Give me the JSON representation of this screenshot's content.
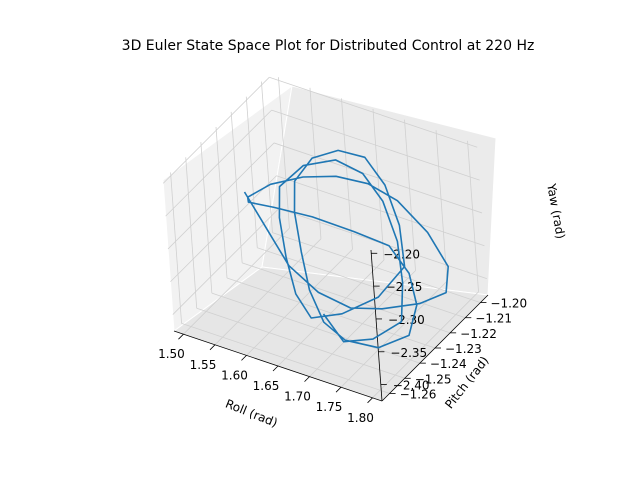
{
  "chart_data": {
    "type": "line3d",
    "title": "3D Euler State Space Plot for Distributed Control at 220 Hz",
    "xlabel": "Roll (rad)",
    "ylabel": "Pitch (rad)",
    "zlabel": "Yaw (rad)",
    "x_ticks": [
      "1.50",
      "1.55",
      "1.60",
      "1.65",
      "1.70",
      "1.75",
      "1.80"
    ],
    "y_ticks": [
      "−1.26",
      "−1.25",
      "−1.24",
      "−1.23",
      "−1.22",
      "−1.21",
      "−1.20"
    ],
    "z_ticks": [
      "−2.40",
      "−2.35",
      "−2.30",
      "−2.25",
      "−2.20"
    ],
    "xlim": [
      1.485,
      1.815
    ],
    "ylim": [
      -1.265,
      -1.195
    ],
    "zlim": [
      -2.425,
      -2.195
    ],
    "grid": true,
    "line_color": "#1f77b4",
    "series": [
      {
        "x": [
          1.55,
          1.6,
          1.64,
          1.69,
          1.73,
          1.76,
          1.79,
          1.8,
          1.78,
          1.74,
          1.7,
          1.67,
          1.64,
          1.61,
          1.58,
          1.56,
          1.55,
          1.57,
          1.61,
          1.66,
          1.71,
          1.75,
          1.78,
          1.79,
          1.76,
          1.72,
          1.69,
          1.66,
          1.63,
          1.6,
          1.58,
          1.59,
          1.62,
          1.66,
          1.7,
          1.74,
          1.77,
          1.75,
          1.71,
          1.67,
          1.64,
          1.61,
          1.58,
          1.56,
          1.58,
          1.62,
          1.66,
          1.7,
          1.74,
          1.77,
          1.79,
          1.76,
          1.72,
          1.68
        ],
        "y": [
          -1.24,
          -1.246,
          -1.25,
          -1.252,
          -1.248,
          -1.24,
          -1.228,
          -1.215,
          -1.205,
          -1.201,
          -1.203,
          -1.209,
          -1.217,
          -1.226,
          -1.235,
          -1.242,
          -1.238,
          -1.23,
          -1.222,
          -1.216,
          -1.214,
          -1.218,
          -1.226,
          -1.236,
          -1.244,
          -1.249,
          -1.25,
          -1.246,
          -1.238,
          -1.229,
          -1.22,
          -1.212,
          -1.207,
          -1.206,
          -1.21,
          -1.218,
          -1.228,
          -1.238,
          -1.246,
          -1.25,
          -1.247,
          -1.24,
          -1.231,
          -1.222,
          -1.214,
          -1.209,
          -1.208,
          -1.212,
          -1.22,
          -1.23,
          -1.24,
          -1.247,
          -1.25,
          -1.246
        ],
        "z": [
          -2.25,
          -2.28,
          -2.31,
          -2.33,
          -2.35,
          -2.36,
          -2.37,
          -2.38,
          -2.37,
          -2.34,
          -2.3,
          -2.27,
          -2.25,
          -2.24,
          -2.24,
          -2.25,
          -2.27,
          -2.29,
          -2.31,
          -2.33,
          -2.34,
          -2.36,
          -2.38,
          -2.4,
          -2.41,
          -2.4,
          -2.38,
          -2.35,
          -2.32,
          -2.29,
          -2.27,
          -2.25,
          -2.24,
          -2.24,
          -2.26,
          -2.29,
          -2.32,
          -2.35,
          -2.37,
          -2.38,
          -2.36,
          -2.33,
          -2.3,
          -2.28,
          -2.26,
          -2.25,
          -2.26,
          -2.28,
          -2.31,
          -2.34,
          -2.37,
          -2.39,
          -2.4,
          -2.38
        ]
      }
    ]
  }
}
